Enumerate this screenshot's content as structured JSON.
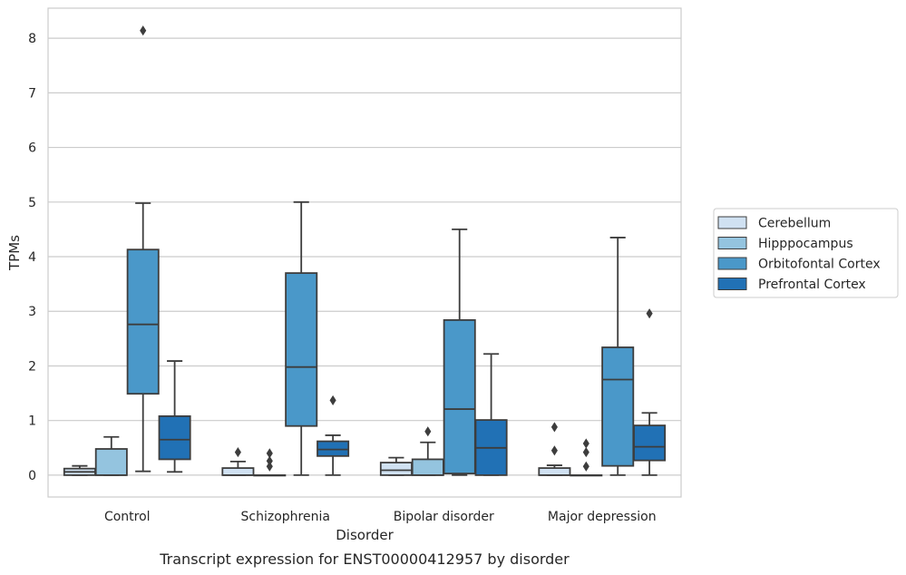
{
  "chart_data": {
    "type": "box",
    "title": "",
    "caption": "Transcript expression for ENST00000412957 by disorder",
    "xlabel": "Disorder",
    "ylabel": "TPMs",
    "ylim": [
      -0.4,
      8.55
    ],
    "yticks": [
      0,
      1,
      2,
      3,
      4,
      5,
      6,
      7,
      8
    ],
    "grid": "horizontal",
    "legend_position": "right",
    "categories": [
      "Control",
      "Schizophrenia",
      "Bipolar disorder",
      "Major depression"
    ],
    "series": [
      {
        "name": "Cerebellum",
        "color": "#d0e1f2",
        "boxes": [
          {
            "min": 0,
            "q1": 0,
            "median": 0.06,
            "q3": 0.12,
            "max": 0.17,
            "outliers": []
          },
          {
            "min": 0,
            "q1": 0,
            "median": 0,
            "q3": 0.13,
            "max": 0.25,
            "outliers": [
              0.42
            ]
          },
          {
            "min": 0,
            "q1": 0,
            "median": 0.09,
            "q3": 0.23,
            "max": 0.32,
            "outliers": []
          },
          {
            "min": 0,
            "q1": 0,
            "median": 0,
            "q3": 0.13,
            "max": 0.18,
            "outliers": [
              0.45,
              0.88
            ]
          }
        ]
      },
      {
        "name": "Hipppocampus",
        "color": "#94c4df",
        "boxes": [
          {
            "min": 0,
            "q1": 0,
            "median": 0,
            "q3": 0.48,
            "max": 0.7,
            "outliers": []
          },
          {
            "min": 0,
            "q1": 0,
            "median": 0,
            "q3": 0,
            "max": 0,
            "outliers": [
              0.16,
              0.26,
              0.4
            ]
          },
          {
            "min": 0,
            "q1": 0,
            "median": 0,
            "q3": 0.29,
            "max": 0.6,
            "outliers": [
              0.8
            ]
          },
          {
            "min": 0,
            "q1": 0,
            "median": 0,
            "q3": 0,
            "max": 0,
            "outliers": [
              0.16,
              0.42,
              0.58
            ]
          }
        ]
      },
      {
        "name": "Orbitofontal Cortex",
        "color": "#4a98c9",
        "boxes": [
          {
            "min": 0.07,
            "q1": 1.49,
            "median": 2.76,
            "q3": 4.13,
            "max": 4.98,
            "outliers": [
              8.14
            ]
          },
          {
            "min": 0,
            "q1": 0.9,
            "median": 1.98,
            "q3": 3.7,
            "max": 5.0,
            "outliers": []
          },
          {
            "min": 0,
            "q1": 0.03,
            "median": 1.21,
            "q3": 2.84,
            "max": 4.5,
            "outliers": []
          },
          {
            "min": 0,
            "q1": 0.17,
            "median": 1.75,
            "q3": 2.34,
            "max": 4.35,
            "outliers": []
          }
        ]
      },
      {
        "name": "Prefrontal Cortex",
        "color": "#2171b5",
        "boxes": [
          {
            "min": 0.06,
            "q1": 0.29,
            "median": 0.65,
            "q3": 1.08,
            "max": 2.09,
            "outliers": []
          },
          {
            "min": 0,
            "q1": 0.35,
            "median": 0.47,
            "q3": 0.62,
            "max": 0.73,
            "outliers": [
              1.37
            ]
          },
          {
            "min": 0,
            "q1": 0,
            "median": 0.5,
            "q3": 1.01,
            "max": 2.22,
            "outliers": []
          },
          {
            "min": 0,
            "q1": 0.27,
            "median": 0.52,
            "q3": 0.91,
            "max": 1.14,
            "outliers": [
              2.96
            ]
          }
        ]
      }
    ]
  }
}
